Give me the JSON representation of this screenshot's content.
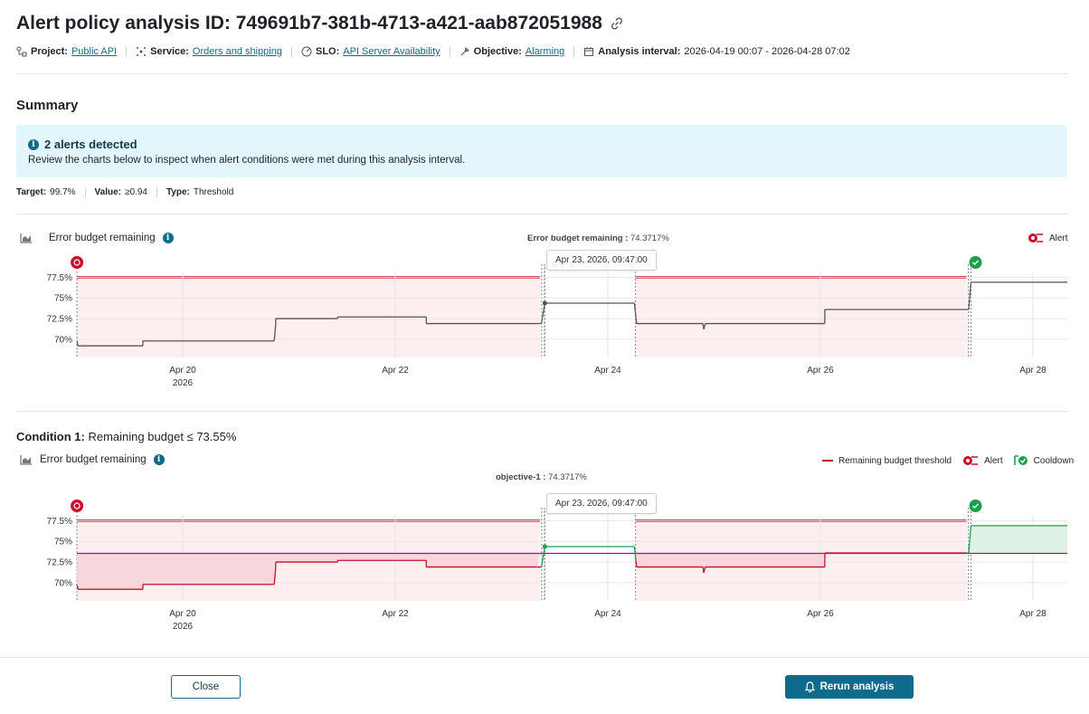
{
  "header": {
    "title": "Alert policy analysis ID: 749691b7-381b-4713-a421-aab872051988",
    "project_label": "Project:",
    "project_value": "Public API",
    "service_label": "Service:",
    "service_value": "Orders and shipping",
    "slo_label": "SLO:",
    "slo_value": "API Server Availability",
    "objective_label": "Objective:",
    "objective_value": "Alarming",
    "interval_label": "Analysis interval:",
    "interval_value": "2026-04-19 00:07 - 2026-04-28 07:02"
  },
  "summary": {
    "heading": "Summary",
    "banner_title": "2 alerts detected",
    "banner_body": "Review the charts below to inspect when alert conditions were met during this analysis interval.",
    "target_label": "Target:",
    "target_value": "99.7%",
    "value_label": "Value:",
    "value_value": "≥0.94",
    "type_label": "Type:",
    "type_value": "Threshold"
  },
  "chart1": {
    "title": "Error budget remaining",
    "center_key": "Error budget remaining :",
    "center_value": "74.3717%",
    "legend_alert": "Alert",
    "tooltip": "Apr 23, 2026, 09:47:00"
  },
  "condition": {
    "label": "Condition 1:",
    "text": "Remaining budget ≤ 73.55%"
  },
  "chart2": {
    "title": "Error budget remaining",
    "center_key": "objective-1 :",
    "center_value": "74.3717%",
    "legend_threshold": "Remaining budget threshold",
    "legend_alert": "Alert",
    "legend_cooldown": "Cooldown",
    "tooltip": "Apr 23, 2026, 09:47:00"
  },
  "chart_data": [
    {
      "type": "line",
      "title": "Error budget remaining",
      "x_ticks": [
        "Apr 20",
        "Apr 22",
        "Apr 24",
        "Apr 26",
        "Apr 28"
      ],
      "x_tick_sub": "2026",
      "y_ticks": [
        "77.5%",
        "75%",
        "72.5%",
        "70%"
      ],
      "ylim": [
        67.8,
        78.2
      ],
      "series": [
        {
          "x": [
            "2026-04-19 00:07",
            "2026-04-19 00:20",
            "2026-04-19 01:00",
            "2026-04-19 15:00",
            "2026-04-19 15:00",
            "2026-04-20 20:40",
            "2026-04-20 21:00",
            "2026-04-20 21:00",
            "2026-04-21 11:00",
            "2026-04-21 11:00",
            "2026-04-22 07:00",
            "2026-04-22 07:00",
            "2026-04-23 08:00",
            "2026-04-23 09:00",
            "2026-04-23 09:47",
            "2026-04-24 06:00",
            "2026-04-24 06:20",
            "2026-04-24 06:30",
            "2026-04-24 21:30",
            "2026-04-24 21:40",
            "2026-04-24 22:00",
            "2026-04-26 01:00",
            "2026-04-26 01:00",
            "2026-04-27 09:00",
            "2026-04-27 09:30",
            "2026-04-27 10:00",
            "2026-04-28 07:02"
          ],
          "values": [
            69.8,
            69.2,
            69.2,
            69.2,
            69.8,
            69.8,
            71.8,
            72.5,
            72.5,
            72.7,
            72.7,
            71.9,
            71.9,
            71.9,
            74.37,
            74.37,
            72.7,
            71.9,
            71.9,
            71.2,
            71.9,
            71.9,
            73.6,
            73.6,
            73.6,
            76.9,
            76.9
          ]
        }
      ],
      "alerts": [
        {
          "start": "2026-04-19 00:07",
          "end": "2026-04-23 08:40"
        },
        {
          "start": "2026-04-24 06:15",
          "end": "2026-04-27 09:00"
        }
      ]
    },
    {
      "type": "line",
      "title": "Error budget remaining",
      "x_ticks": [
        "Apr 20",
        "Apr 22",
        "Apr 24",
        "Apr 26",
        "Apr 28"
      ],
      "x_tick_sub": "2026",
      "y_ticks": [
        "77.5%",
        "75%",
        "72.5%",
        "70%"
      ],
      "ylim": [
        67.8,
        78.2
      ],
      "threshold": 73.55,
      "series": [
        {
          "x": [
            "2026-04-19 00:07",
            "2026-04-19 00:20",
            "2026-04-19 01:00",
            "2026-04-19 15:00",
            "2026-04-19 15:00",
            "2026-04-20 20:40",
            "2026-04-20 21:00",
            "2026-04-20 21:00",
            "2026-04-21 11:00",
            "2026-04-21 11:00",
            "2026-04-22 07:00",
            "2026-04-22 07:00",
            "2026-04-23 08:00",
            "2026-04-23 09:00",
            "2026-04-23 09:47",
            "2026-04-24 06:00",
            "2026-04-24 06:20",
            "2026-04-24 06:30",
            "2026-04-24 21:30",
            "2026-04-24 21:40",
            "2026-04-24 22:00",
            "2026-04-26 01:00",
            "2026-04-26 01:00",
            "2026-04-27 09:00",
            "2026-04-27 09:30",
            "2026-04-27 10:00",
            "2026-04-28 07:02"
          ],
          "values": [
            69.8,
            69.2,
            69.2,
            69.2,
            69.8,
            69.8,
            71.8,
            72.5,
            72.5,
            72.7,
            72.7,
            71.9,
            71.9,
            71.9,
            74.37,
            74.37,
            72.7,
            71.9,
            71.9,
            71.2,
            71.9,
            71.9,
            73.6,
            73.6,
            73.6,
            76.9,
            76.9
          ]
        }
      ],
      "alerts": [
        {
          "start": "2026-04-19 00:07",
          "end": "2026-04-23 08:40"
        },
        {
          "start": "2026-04-24 06:15",
          "end": "2026-04-27 09:00"
        }
      ]
    }
  ],
  "footer": {
    "close_label": "Close",
    "rerun_label": "Rerun analysis"
  },
  "colors": {
    "accent": "#0e6b8c",
    "alert": "#c8102e",
    "alert_fill": "#fdeef0",
    "cooldown": "#1d9e52",
    "threshold": "#a7106b"
  }
}
